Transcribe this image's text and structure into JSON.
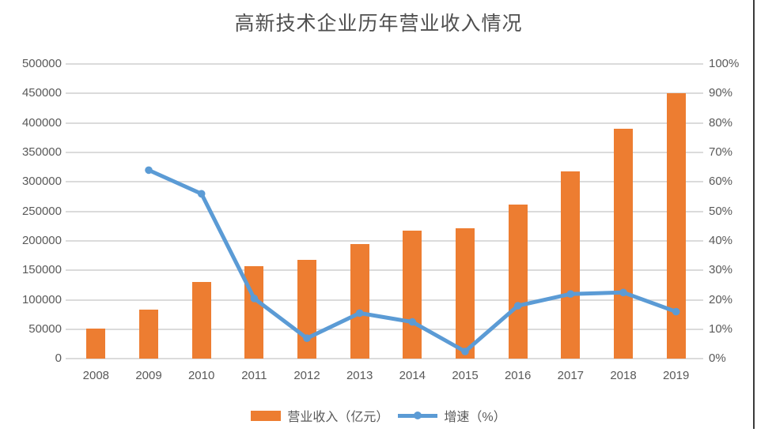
{
  "page": {
    "background": "#FFFFFF",
    "right_border_color": "#3B3B3B"
  },
  "chart_data": {
    "type": "combo_bar_line",
    "title": "高新技术企业历年营业收入情况",
    "categories": [
      "2008",
      "2009",
      "2010",
      "2011",
      "2012",
      "2013",
      "2014",
      "2015",
      "2016",
      "2017",
      "2018",
      "2019"
    ],
    "series": [
      {
        "name": "营业收入（亿元）",
        "type": "bar",
        "axis": "left",
        "color": "#ED7D31",
        "values": [
          51000,
          83000,
          130000,
          157000,
          168000,
          195000,
          217000,
          222000,
          261000,
          318000,
          390000,
          451000
        ]
      },
      {
        "name": "增速（%）",
        "type": "line",
        "axis": "right",
        "color": "#5B9BD5",
        "marker": "circle",
        "values": [
          null,
          64,
          56,
          20.5,
          7,
          15.5,
          12.5,
          2.5,
          18,
          22,
          22.5,
          16
        ]
      }
    ],
    "left_axis": {
      "min": 0,
      "max": 500000,
      "step": 50000
    },
    "right_axis": {
      "min": 0,
      "max": 100,
      "step": 10,
      "suffix": "%"
    },
    "grid": true,
    "gridline_color": "#DBDBDB",
    "text_color": "#595959",
    "legend_position": "bottom"
  }
}
